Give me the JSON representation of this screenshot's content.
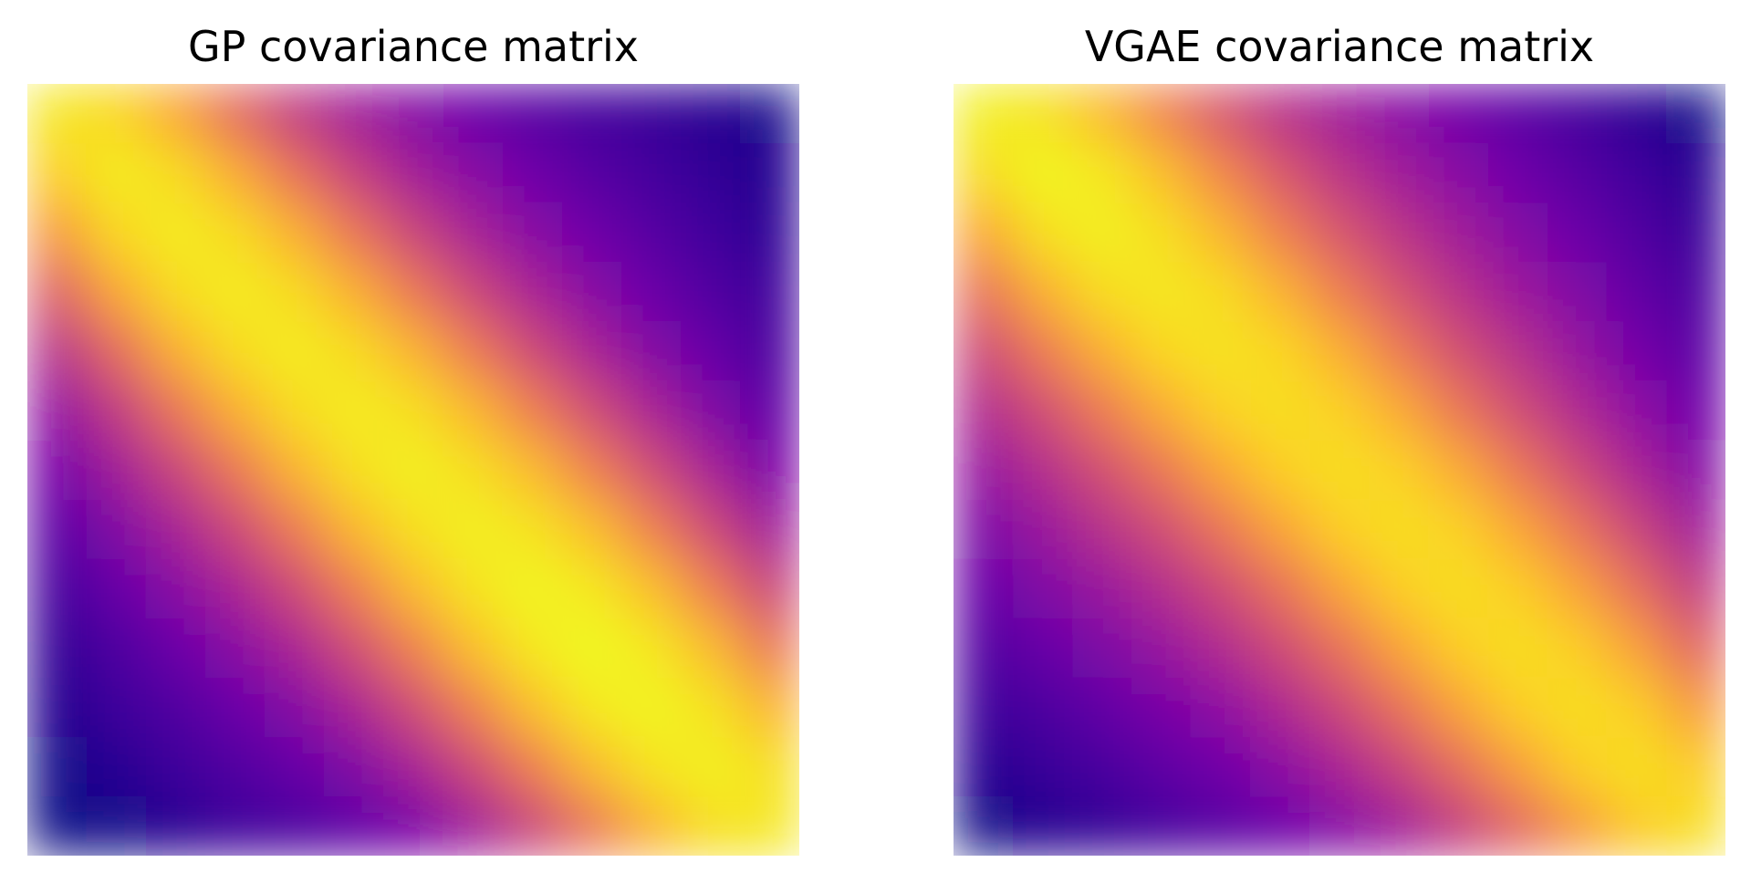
{
  "colormap": "plasma",
  "chart_data": [
    {
      "type": "heatmap",
      "title": "GP covariance matrix",
      "xlabel": "",
      "ylabel": "",
      "axes": "off",
      "grid": false,
      "colorbar": false,
      "rows": 13,
      "cols": 13,
      "values": [
        [
          0.96,
          0.92,
          0.8,
          0.62,
          0.46,
          0.35,
          0.27,
          0.2,
          0.15,
          0.11,
          0.08,
          0.05,
          0.03
        ],
        [
          0.9,
          0.97,
          0.93,
          0.81,
          0.64,
          0.48,
          0.36,
          0.28,
          0.21,
          0.15,
          0.11,
          0.07,
          0.04
        ],
        [
          0.76,
          0.92,
          0.97,
          0.93,
          0.82,
          0.65,
          0.49,
          0.37,
          0.28,
          0.21,
          0.15,
          0.1,
          0.06
        ],
        [
          0.58,
          0.8,
          0.93,
          0.97,
          0.93,
          0.82,
          0.66,
          0.5,
          0.38,
          0.28,
          0.2,
          0.14,
          0.09
        ],
        [
          0.42,
          0.62,
          0.82,
          0.93,
          0.97,
          0.93,
          0.83,
          0.67,
          0.51,
          0.38,
          0.27,
          0.19,
          0.12
        ],
        [
          0.31,
          0.46,
          0.65,
          0.82,
          0.93,
          0.97,
          0.94,
          0.84,
          0.68,
          0.52,
          0.38,
          0.26,
          0.17
        ],
        [
          0.23,
          0.35,
          0.49,
          0.66,
          0.83,
          0.94,
          0.98,
          0.94,
          0.85,
          0.69,
          0.52,
          0.37,
          0.24
        ],
        [
          0.16,
          0.26,
          0.37,
          0.5,
          0.67,
          0.84,
          0.94,
          0.98,
          0.95,
          0.86,
          0.69,
          0.51,
          0.35
        ],
        [
          0.11,
          0.19,
          0.28,
          0.38,
          0.51,
          0.68,
          0.85,
          0.95,
          0.99,
          0.96,
          0.86,
          0.68,
          0.49
        ],
        [
          0.07,
          0.13,
          0.2,
          0.28,
          0.38,
          0.52,
          0.69,
          0.86,
          0.96,
          1.0,
          0.96,
          0.85,
          0.66
        ],
        [
          0.04,
          0.09,
          0.14,
          0.2,
          0.27,
          0.38,
          0.52,
          0.69,
          0.86,
          0.96,
          0.99,
          0.95,
          0.83
        ],
        [
          0.02,
          0.05,
          0.09,
          0.14,
          0.19,
          0.26,
          0.37,
          0.51,
          0.68,
          0.85,
          0.95,
          0.98,
          0.94
        ],
        [
          0.0,
          0.02,
          0.05,
          0.09,
          0.12,
          0.17,
          0.24,
          0.35,
          0.49,
          0.66,
          0.83,
          0.94,
          0.96
        ]
      ]
    },
    {
      "type": "heatmap",
      "title": "VGAE covariance matrix",
      "xlabel": "",
      "ylabel": "",
      "axes": "off",
      "grid": false,
      "colorbar": false,
      "rows": 13,
      "cols": 13,
      "values": [
        [
          0.98,
          0.95,
          0.85,
          0.7,
          0.55,
          0.43,
          0.35,
          0.28,
          0.22,
          0.16,
          0.11,
          0.06,
          0.02
        ],
        [
          0.93,
          0.99,
          0.96,
          0.86,
          0.71,
          0.56,
          0.44,
          0.35,
          0.28,
          0.21,
          0.15,
          0.1,
          0.05
        ],
        [
          0.8,
          0.94,
          0.98,
          0.94,
          0.84,
          0.69,
          0.55,
          0.44,
          0.35,
          0.27,
          0.2,
          0.14,
          0.08
        ],
        [
          0.64,
          0.82,
          0.93,
          0.96,
          0.93,
          0.83,
          0.68,
          0.54,
          0.43,
          0.34,
          0.26,
          0.18,
          0.12
        ],
        [
          0.5,
          0.67,
          0.82,
          0.92,
          0.95,
          0.92,
          0.82,
          0.67,
          0.53,
          0.42,
          0.32,
          0.23,
          0.16
        ],
        [
          0.4,
          0.52,
          0.67,
          0.81,
          0.91,
          0.94,
          0.91,
          0.81,
          0.66,
          0.52,
          0.4,
          0.3,
          0.21
        ],
        [
          0.32,
          0.41,
          0.53,
          0.66,
          0.8,
          0.9,
          0.94,
          0.91,
          0.81,
          0.66,
          0.51,
          0.38,
          0.27
        ],
        [
          0.25,
          0.33,
          0.42,
          0.52,
          0.65,
          0.79,
          0.9,
          0.94,
          0.91,
          0.8,
          0.65,
          0.49,
          0.35
        ],
        [
          0.19,
          0.26,
          0.33,
          0.41,
          0.51,
          0.64,
          0.79,
          0.9,
          0.94,
          0.9,
          0.79,
          0.63,
          0.46
        ],
        [
          0.14,
          0.19,
          0.25,
          0.32,
          0.4,
          0.51,
          0.64,
          0.79,
          0.9,
          0.94,
          0.9,
          0.78,
          0.6
        ],
        [
          0.09,
          0.13,
          0.18,
          0.24,
          0.3,
          0.39,
          0.5,
          0.64,
          0.79,
          0.9,
          0.94,
          0.9,
          0.76
        ],
        [
          0.05,
          0.08,
          0.12,
          0.17,
          0.22,
          0.29,
          0.38,
          0.49,
          0.63,
          0.78,
          0.9,
          0.94,
          0.89
        ],
        [
          0.01,
          0.04,
          0.07,
          0.11,
          0.15,
          0.2,
          0.27,
          0.35,
          0.47,
          0.61,
          0.76,
          0.89,
          0.94
        ]
      ]
    }
  ]
}
